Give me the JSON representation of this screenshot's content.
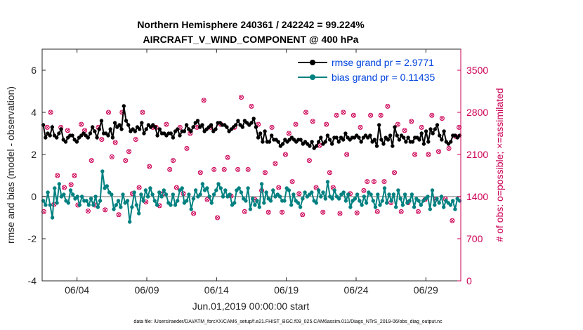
{
  "chart_data": {
    "type": "line",
    "title_line1": "Northern Hemisphere 240361 / 242242 = 99.224%",
    "title_line2": "AIRCRAFT_V_WIND_COMPONENT @ 400 hPa",
    "xlabel": "Jun.01,2019 00:00:00 start",
    "ylabel_left": "rmse and bias (model - observation)",
    "ylabel_right": "# of obs: o=possible; ×=assimilated",
    "ylim_left": [
      -4,
      7
    ],
    "ylim_right": [
      0,
      3850
    ],
    "xlim_days": [
      1.5,
      31.5
    ],
    "yticks_left": [
      "-4",
      "-2",
      "0",
      "2",
      "4",
      "6"
    ],
    "yticks_right": [
      "0",
      "700",
      "1400",
      "2100",
      "2800",
      "3500"
    ],
    "xtick_labels": [
      "06/04",
      "06/09",
      "06/14",
      "06/19",
      "06/24",
      "06/29"
    ],
    "xtick_days": [
      4,
      9,
      14,
      19,
      24,
      29
    ],
    "colors": {
      "rmse": "#000000",
      "bias": "#008080",
      "obs": "#cc0055",
      "zero_line": "#b4b4b4",
      "legend_text": "#0044dd"
    },
    "legend": {
      "rmse_label": "rmse grand pr = 2.9771",
      "bias_label": "bias grand pr = 0.11435"
    },
    "series": [
      {
        "name": "rmse",
        "values": [
          3.4,
          2.8,
          3.0,
          2.9,
          3.3,
          2.9,
          2.8,
          3.0,
          3.2,
          2.7,
          2.6,
          2.8,
          2.9,
          2.9,
          2.7,
          2.6,
          2.8,
          2.9,
          3.0,
          2.9,
          2.8,
          3.0,
          3.3,
          3.1,
          2.8,
          3.2,
          3.6,
          3.0,
          3.0,
          2.9,
          3.2,
          2.8,
          3.5,
          3.3,
          3.4,
          3.2,
          4.3,
          3.6,
          3.4,
          3.1,
          3.2,
          3.1,
          3.3,
          3.2,
          3.5,
          3.0,
          3.2,
          3.4,
          3.3,
          3.4,
          3.3,
          2.9,
          3.2,
          3.0,
          3.0,
          2.9,
          3.0,
          3.0,
          2.8,
          3.1,
          3.2,
          2.9,
          3.1,
          3.1,
          3.4,
          3.2,
          3.1,
          3.3,
          3.5,
          3.6,
          3.3,
          3.4,
          3.1,
          3.2,
          3.3,
          3.4,
          3.1,
          3.2,
          3.5,
          3.5,
          3.4,
          3.4,
          3.3,
          3.1,
          3.2,
          3.3,
          3.4,
          3.6,
          3.4,
          3.3,
          3.6,
          3.5,
          3.4,
          3.5,
          3.7,
          3.3,
          2.8,
          3.0,
          2.6,
          3.1,
          2.6,
          2.6,
          2.9,
          2.7,
          2.7,
          2.6,
          2.4,
          2.5,
          2.7,
          2.6,
          2.7,
          2.8,
          2.7,
          2.6,
          2.7,
          2.7,
          2.5,
          2.6,
          2.5,
          2.4,
          2.6,
          2.3,
          2.4,
          2.6,
          2.8,
          2.5,
          2.6,
          2.9,
          2.7,
          2.5,
          2.8,
          2.8,
          2.6,
          2.8,
          2.7,
          3.0,
          2.8,
          2.7,
          2.8,
          2.8,
          2.9,
          2.8,
          2.6,
          2.8,
          2.9,
          2.8,
          2.9,
          2.6,
          2.7,
          2.4,
          3.4,
          2.7,
          2.5,
          2.8,
          2.7,
          2.9,
          2.4,
          3.3,
          2.9,
          2.7,
          2.9,
          2.8,
          2.6,
          2.8,
          2.6,
          2.6,
          2.8,
          2.8,
          2.7,
          3.0,
          2.5,
          3.1,
          2.6,
          3.2,
          3.0,
          3.2,
          3.4,
          2.9,
          2.7,
          3.1,
          2.6,
          2.5,
          2.6,
          2.9,
          2.9,
          2.8,
          2.9
        ]
      },
      {
        "name": "bias",
        "values": [
          -0.2,
          -0.4,
          0.2,
          -0.4,
          -1.0,
          0.4,
          -0.3,
          0.6,
          0.0,
          0.1,
          -0.2,
          -0.3,
          0.3,
          0.1,
          -0.1,
          0.0,
          -0.4,
          0.0,
          -0.2,
          -0.2,
          -0.4,
          -0.1,
          -0.4,
          0.0,
          -0.5,
          -0.2,
          1.2,
          0.4,
          0.5,
          0.2,
          0.1,
          -0.6,
          -0.4,
          -0.2,
          -0.5,
          0.1,
          -0.3,
          -0.2,
          -1.2,
          -0.5,
          0.2,
          -0.4,
          -0.8,
          0.1,
          -0.2,
          0.3,
          0.0,
          0.4,
          0.1,
          -0.2,
          -0.4,
          0.2,
          0.0,
          0.3,
          0.1,
          -0.3,
          -0.4,
          0.1,
          -0.4,
          -0.2,
          0.3,
          0.4,
          -0.3,
          -0.2,
          0.1,
          -0.6,
          -0.1,
          0.3,
          0.0,
          0.1,
          0.6,
          0.3,
          0.4,
          0.0,
          -0.3,
          0.1,
          0.3,
          0.6,
          0.4,
          0.0,
          0.3,
          0.0,
          0.1,
          -0.4,
          -0.3,
          0.3,
          0.4,
          0.2,
          -0.1,
          -0.2,
          0.4,
          -0.6,
          -0.1,
          -0.4,
          -0.2,
          -0.5,
          0.6,
          -0.3,
          0.2,
          -0.1,
          -0.2,
          0.3,
          0.0,
          0.1,
          0.0,
          -0.2,
          -0.2,
          0.4,
          0.3,
          -0.4,
          0.1,
          -0.2,
          -0.3,
          -0.5,
          -0.1,
          0.2,
          0.0,
          0.1,
          0.2,
          -0.2,
          -0.3,
          0.3,
          0.0,
          0.2,
          -0.1,
          0.7,
          0.0,
          -0.1,
          0.3,
          0.0,
          -0.1,
          0.1,
          0.2,
          -0.2,
          0.1,
          -0.5,
          -0.2,
          -0.1,
          0.1,
          -0.2,
          -0.4,
          0.0,
          -0.3,
          0.2,
          0.1,
          -0.2,
          -0.5,
          0.1,
          -0.4,
          -0.2,
          0.4,
          -0.3,
          0.1,
          -0.2,
          0.1,
          -0.5,
          0.3,
          -0.1,
          -0.4,
          0.1,
          -0.3,
          -0.2,
          0.1,
          -0.5,
          -0.1,
          -0.2,
          -0.4,
          -0.2,
          -0.1,
          0.0,
          -0.6,
          0.3,
          -0.4,
          -0.1,
          -0.3,
          0.0,
          -0.5,
          -0.2,
          -0.3,
          -0.4,
          -0.2,
          -0.6,
          -0.1,
          -0.2
        ]
      },
      {
        "name": "obs_possible",
        "values": [
          1150,
          2550,
          2800,
          1270,
          1750,
          2550,
          1550,
          2500,
          1600,
          1750,
          1260,
          2600,
          2500,
          1160,
          2000,
          1260,
          2550,
          2350,
          1180,
          2800,
          2060,
          2300,
          1100,
          2800,
          2000,
          2150,
          1450,
          2350,
          1550,
          2800,
          1310,
          1900,
          2550,
          2550,
          1250,
          1450,
          2600,
          1850,
          2000,
          1550,
          2550,
          1450,
          2200,
          2450,
          1120,
          2550,
          1800,
          3000,
          1350,
          2550,
          1850,
          1050,
          2600,
          1850,
          2050,
          1410,
          2550,
          1850,
          3050,
          1150,
          1850,
          2900,
          1350,
          2600,
          1500,
          1800,
          1140,
          2550,
          1950,
          1550,
          1140,
          2100,
          2450,
          1650,
          2600,
          1450,
          1100,
          2800,
          2000,
          2650,
          1550,
          2250,
          1140,
          2600,
          1800,
          1550,
          2750,
          1120,
          2800,
          2100,
          1450,
          2750,
          1130,
          2550,
          1500,
          1650,
          2750,
          1650,
          1150,
          2750,
          1650,
          2900,
          1300,
          1800,
          2600,
          1150,
          2500,
          1300,
          2650,
          2100,
          1150,
          2550,
          1350,
          2100,
          2750,
          1350,
          2150,
          2700,
          1360,
          2200,
          1000,
          2400,
          2550
        ]
      },
      {
        "name": "obs_assimilated",
        "values": [
          1150,
          2550,
          2800,
          1270,
          1750,
          2550,
          1550,
          2500,
          1600,
          1750,
          1260,
          2600,
          2500,
          1160,
          2000,
          1260,
          2550,
          2350,
          1180,
          2800,
          2060,
          2300,
          1100,
          2800,
          2000,
          2150,
          1450,
          2350,
          1550,
          2800,
          1310,
          1900,
          2550,
          2550,
          1250,
          1450,
          2600,
          1850,
          2000,
          1550,
          2550,
          1450,
          2200,
          2450,
          1120,
          2550,
          1800,
          3000,
          1350,
          2550,
          1850,
          1050,
          2600,
          1850,
          2050,
          1410,
          2550,
          1850,
          3050,
          1150,
          1850,
          2900,
          1350,
          2600,
          1500,
          1800,
          1140,
          2550,
          1950,
          1550,
          1140,
          2100,
          2450,
          1650,
          2600,
          1450,
          1100,
          2800,
          2000,
          2650,
          1550,
          2250,
          1140,
          2600,
          1800,
          1550,
          2750,
          1120,
          2800,
          2100,
          1450,
          2750,
          1130,
          2550,
          1500,
          1650,
          2750,
          1650,
          1150,
          2750,
          1650,
          2900,
          1300,
          1800,
          2600,
          1150,
          2500,
          1300,
          2650,
          2100,
          1150,
          2550,
          1350,
          2100,
          2750,
          1350,
          2150,
          2700,
          1360,
          2200,
          1000,
          2400,
          2550
        ]
      }
    ]
  },
  "footer": "data file: /Users/raeder/DAI/ATM_forcXX/CAM6_setup/f.e21.FHIST_BGC.f09_025.CAM6assim.011/Diags_NTrS_2019-06/obs_diag_output.nc"
}
